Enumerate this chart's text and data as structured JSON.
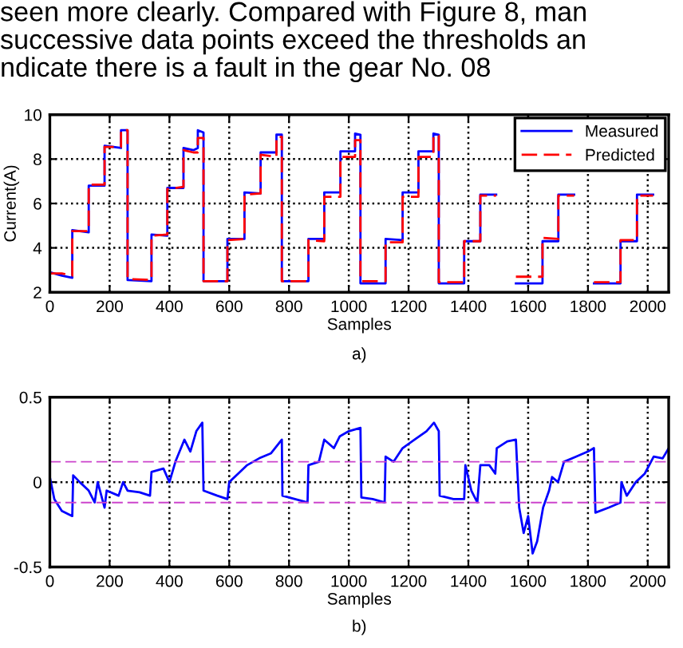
{
  "chart_data": [
    {
      "type": "line",
      "xlabel": "Samples",
      "ylabel": "Current(A)",
      "xlim": [
        0,
        2070
      ],
      "ylim": [
        2,
        10
      ],
      "xticks": [
        0,
        200,
        400,
        600,
        800,
        1000,
        1200,
        1400,
        1600,
        1800,
        2000
      ],
      "yticks": [
        2,
        4,
        6,
        8,
        10
      ],
      "grid": true,
      "legend": "top right",
      "annotations": [
        "seen more clearly. Compared with Figure 8, man\nsuccessive data points exceed the thresholds an\nndicate there is a fault in the gear No. 08",
        "a)"
      ],
      "series": [
        {
          "name": "Measured",
          "color": "#0000ff",
          "line_style": "solid",
          "x": [
            0,
            40,
            75,
            75,
            130,
            130,
            183,
            183,
            238,
            238,
            260,
            260,
            340,
            340,
            393,
            393,
            447,
            447,
            480,
            495,
            495,
            514,
            514,
            594,
            594,
            651,
            651,
            705,
            705,
            758,
            758,
            776,
            776,
            865,
            865,
            918,
            918,
            972,
            972,
            1021,
            1021,
            1039,
            1039,
            1123,
            1123,
            1180,
            1180,
            1233,
            1233,
            1283,
            1283,
            1301,
            1301,
            1386,
            1386,
            1440,
            1440,
            1493,
            1520,
            1559,
            1648,
            1648,
            1701,
            1701,
            1754,
            1790,
            1820,
            1909,
            1909,
            1964,
            1964,
            2018
          ],
          "values": [
            2.9,
            2.75,
            2.65,
            4.8,
            4.7,
            6.8,
            6.8,
            8.6,
            8.5,
            9.3,
            9.3,
            2.55,
            2.5,
            4.6,
            4.55,
            6.7,
            6.7,
            8.5,
            8.4,
            8.5,
            9.3,
            9.2,
            2.5,
            2.5,
            4.4,
            4.4,
            6.5,
            6.45,
            8.3,
            8.3,
            9.1,
            9.1,
            2.5,
            2.5,
            4.4,
            4.4,
            6.5,
            6.5,
            8.35,
            8.35,
            9.15,
            9.1,
            2.4,
            2.4,
            4.4,
            4.35,
            6.5,
            6.5,
            8.35,
            8.35,
            9.15,
            9.1,
            2.4,
            2.4,
            4.3,
            4.3,
            6.4,
            6.4,
            null,
            2.4,
            2.4,
            4.3,
            4.3,
            6.4,
            6.4,
            null,
            2.4,
            2.4,
            4.3,
            4.3,
            6.4,
            6.4
          ]
        },
        {
          "name": "Predicted",
          "color": "#ff0000",
          "line_style": "dashed",
          "x": [
            0,
            40,
            75,
            75,
            130,
            130,
            183,
            183,
            238,
            238,
            260,
            260,
            340,
            340,
            393,
            393,
            447,
            447,
            480,
            495,
            495,
            514,
            514,
            594,
            594,
            651,
            651,
            705,
            705,
            758,
            758,
            776,
            776,
            865,
            865,
            918,
            918,
            972,
            972,
            1021,
            1021,
            1039,
            1039,
            1123,
            1123,
            1180,
            1180,
            1233,
            1233,
            1283,
            1283,
            1301,
            1301,
            1386,
            1386,
            1440,
            1440,
            1493,
            1520,
            1559,
            1648,
            1648,
            1701,
            1701,
            1754,
            1790,
            1820,
            1909,
            1909,
            1964,
            1964,
            2018
          ],
          "values": [
            2.85,
            2.85,
            2.75,
            4.75,
            4.75,
            6.85,
            6.85,
            8.55,
            8.55,
            9.3,
            9.3,
            2.6,
            2.55,
            4.55,
            4.6,
            6.65,
            6.75,
            8.4,
            8.3,
            8.3,
            8.95,
            8.95,
            2.5,
            2.5,
            4.35,
            4.4,
            6.4,
            6.45,
            8.2,
            8.1,
            9.0,
            9.0,
            2.5,
            2.5,
            4.35,
            4.3,
            6.3,
            6.3,
            8.1,
            8.1,
            8.85,
            8.85,
            2.5,
            2.5,
            4.25,
            4.25,
            6.3,
            6.3,
            8.1,
            8.1,
            9.05,
            9.05,
            2.45,
            2.45,
            4.3,
            4.3,
            6.35,
            6.35,
            null,
            2.7,
            2.7,
            4.45,
            4.4,
            6.35,
            6.35,
            null,
            2.45,
            2.45,
            4.35,
            4.35,
            6.35,
            6.35
          ]
        }
      ]
    },
    {
      "type": "line",
      "xlabel": "Samples",
      "xlim": [
        0,
        2070
      ],
      "ylim": [
        -0.5,
        0.5
      ],
      "xticks": [
        0,
        200,
        400,
        600,
        800,
        1000,
        1200,
        1400,
        1600,
        1800,
        2000
      ],
      "yticks": [
        -0.5,
        0,
        0.5
      ],
      "grid": true,
      "annotations": [
        "b)"
      ],
      "ref_lines": [
        {
          "axis": "y",
          "value": 0.12,
          "color": "#cc44cc",
          "line_style": "dashed"
        },
        {
          "axis": "y",
          "value": -0.12,
          "color": "#cc44cc",
          "line_style": "dashed"
        }
      ],
      "series": [
        {
          "color": "#0000ff",
          "x": [
            0,
            15,
            40,
            75,
            78,
            100,
            130,
            150,
            160,
            183,
            190,
            230,
            245,
            260,
            300,
            335,
            340,
            380,
            400,
            420,
            450,
            470,
            490,
            510,
            514,
            560,
            594,
            600,
            630,
            660,
            700,
            740,
            776,
            778,
            820,
            862,
            865,
            900,
            918,
            950,
            970,
            1000,
            1039,
            1042,
            1080,
            1120,
            1123,
            1150,
            1180,
            1220,
            1260,
            1285,
            1301,
            1304,
            1350,
            1386,
            1390,
            1410,
            1430,
            1440,
            1470,
            1490,
            1495,
            1530,
            1559,
            1570,
            1585,
            1600,
            1615,
            1630,
            1650,
            1670,
            1680,
            1700,
            1720,
            1760,
            1800,
            1820,
            1825,
            1870,
            1909,
            1912,
            1930,
            1960,
            1990,
            2020,
            2050,
            2070
          ],
          "values": [
            0.03,
            -0.1,
            -0.17,
            -0.2,
            0.04,
            0.0,
            -0.05,
            -0.12,
            0.0,
            -0.15,
            -0.05,
            -0.08,
            0.0,
            -0.05,
            -0.06,
            -0.08,
            0.06,
            0.08,
            0.0,
            0.12,
            0.25,
            0.18,
            0.3,
            0.35,
            -0.05,
            -0.08,
            -0.1,
            0.0,
            0.05,
            0.1,
            0.14,
            0.17,
            0.25,
            -0.08,
            -0.1,
            -0.12,
            0.1,
            0.12,
            0.25,
            0.2,
            0.27,
            0.3,
            0.32,
            -0.09,
            -0.1,
            -0.12,
            0.15,
            0.12,
            0.2,
            0.25,
            0.3,
            0.35,
            0.3,
            -0.08,
            -0.1,
            -0.1,
            0.1,
            -0.05,
            -0.12,
            0.1,
            0.1,
            0.05,
            0.2,
            0.24,
            0.25,
            -0.15,
            -0.3,
            -0.2,
            -0.42,
            -0.35,
            -0.15,
            -0.05,
            0.03,
            0.0,
            0.12,
            0.15,
            0.18,
            0.2,
            -0.18,
            -0.15,
            -0.12,
            0.0,
            -0.08,
            0.0,
            0.05,
            0.15,
            0.14,
            0.2
          ]
        }
      ]
    }
  ]
}
